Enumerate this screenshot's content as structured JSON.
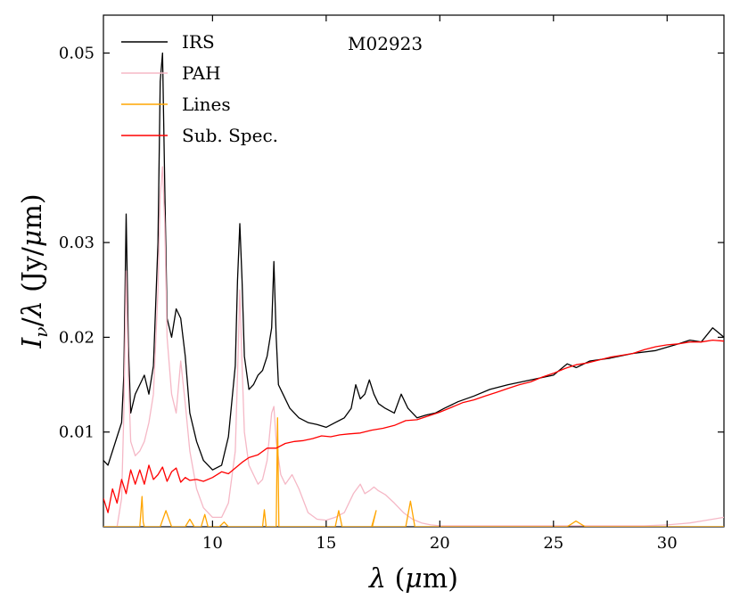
{
  "chart_data": {
    "type": "line",
    "title": "",
    "annotation": "M02923",
    "xlabel": "λ (μm)",
    "ylabel": "Iν/λ (Jy/μm)",
    "xlim": [
      5.2,
      32.5
    ],
    "ylim": [
      0.0,
      0.054
    ],
    "xticks": [
      10,
      15,
      20,
      25,
      30
    ],
    "yticks": [
      0.01,
      0.02,
      0.03,
      0.05
    ],
    "xtick_labels": [
      "10",
      "15",
      "20",
      "25",
      "30"
    ],
    "ytick_labels": [
      "0.01",
      "0.02",
      "0.03",
      "0.05"
    ],
    "legend_position": "top-left",
    "series": [
      {
        "name": "IRS",
        "color": "#000000",
        "x": [
          5.2,
          5.4,
          5.6,
          5.8,
          6.0,
          6.1,
          6.2,
          6.3,
          6.4,
          6.6,
          6.8,
          7.0,
          7.2,
          7.4,
          7.6,
          7.7,
          7.8,
          7.9,
          8.0,
          8.2,
          8.4,
          8.6,
          8.8,
          9.0,
          9.3,
          9.6,
          10.0,
          10.4,
          10.7,
          11.0,
          11.1,
          11.2,
          11.3,
          11.4,
          11.6,
          11.8,
          12.0,
          12.2,
          12.4,
          12.6,
          12.7,
          12.8,
          12.9,
          13.1,
          13.4,
          13.8,
          14.2,
          14.6,
          15.0,
          15.4,
          15.8,
          16.1,
          16.3,
          16.5,
          16.7,
          16.9,
          17.1,
          17.3,
          17.6,
          18.0,
          18.3,
          18.6,
          18.8,
          19.0,
          19.4,
          19.8,
          20.2,
          20.8,
          21.5,
          22.2,
          23.0,
          24.0,
          25.0,
          25.6,
          26.0,
          26.6,
          27.5,
          28.5,
          29.5,
          30.5,
          31.0,
          31.5,
          32.0,
          32.5
        ],
        "y": [
          0.007,
          0.0065,
          0.008,
          0.0095,
          0.011,
          0.016,
          0.033,
          0.019,
          0.012,
          0.014,
          0.015,
          0.016,
          0.014,
          0.017,
          0.03,
          0.047,
          0.05,
          0.036,
          0.022,
          0.02,
          0.023,
          0.022,
          0.018,
          0.012,
          0.009,
          0.007,
          0.006,
          0.0065,
          0.0095,
          0.017,
          0.026,
          0.032,
          0.026,
          0.018,
          0.0145,
          0.015,
          0.016,
          0.0165,
          0.018,
          0.021,
          0.028,
          0.02,
          0.015,
          0.014,
          0.0125,
          0.0115,
          0.011,
          0.0108,
          0.0105,
          0.011,
          0.0115,
          0.0125,
          0.015,
          0.0135,
          0.014,
          0.0155,
          0.014,
          0.013,
          0.0125,
          0.012,
          0.014,
          0.0125,
          0.012,
          0.0115,
          0.0118,
          0.012,
          0.0125,
          0.0132,
          0.0138,
          0.0145,
          0.015,
          0.0155,
          0.016,
          0.0172,
          0.0168,
          0.0175,
          0.0178,
          0.0183,
          0.0186,
          0.0193,
          0.0197,
          0.0195,
          0.021,
          0.02
        ]
      },
      {
        "name": "PAH",
        "color": "#f5b8c6",
        "x": [
          5.2,
          5.8,
          6.0,
          6.1,
          6.2,
          6.3,
          6.4,
          6.6,
          6.8,
          7.0,
          7.2,
          7.4,
          7.6,
          7.7,
          7.8,
          7.9,
          8.0,
          8.2,
          8.4,
          8.6,
          8.8,
          9.0,
          9.3,
          9.6,
          10.0,
          10.4,
          10.7,
          11.0,
          11.1,
          11.2,
          11.3,
          11.4,
          11.6,
          11.8,
          12.0,
          12.2,
          12.4,
          12.6,
          12.7,
          12.8,
          13.0,
          13.2,
          13.5,
          13.8,
          14.2,
          14.6,
          15.0,
          15.4,
          15.8,
          16.2,
          16.5,
          16.7,
          16.9,
          17.1,
          17.3,
          17.6,
          18.0,
          18.4,
          18.8,
          19.2,
          19.6,
          20.0,
          21.0,
          22.0,
          23.0,
          24.0,
          25.0,
          26.0,
          27.0,
          28.0,
          29.0,
          30.0,
          31.0,
          31.5,
          32.0,
          32.5
        ],
        "y": [
          0.0,
          0.0,
          0.003,
          0.012,
          0.027,
          0.016,
          0.009,
          0.0075,
          0.008,
          0.009,
          0.011,
          0.014,
          0.025,
          0.035,
          0.038,
          0.032,
          0.02,
          0.014,
          0.012,
          0.0175,
          0.013,
          0.008,
          0.004,
          0.002,
          0.001,
          0.001,
          0.0025,
          0.008,
          0.016,
          0.025,
          0.017,
          0.01,
          0.0065,
          0.0055,
          0.0045,
          0.005,
          0.007,
          0.012,
          0.0127,
          0.009,
          0.0055,
          0.0045,
          0.0055,
          0.004,
          0.0015,
          0.0008,
          0.0007,
          0.001,
          0.0015,
          0.0035,
          0.0045,
          0.0035,
          0.0038,
          0.0042,
          0.0038,
          0.0034,
          0.0025,
          0.0015,
          0.0008,
          0.0004,
          0.0002,
          0.0001,
          0.0001,
          0.0001,
          0.0001,
          0.0001,
          0.0001,
          0.0001,
          0.0001,
          0.0001,
          0.0001,
          0.0002,
          0.0004,
          0.0006,
          0.0008,
          0.001
        ]
      },
      {
        "name": "Lines",
        "color": "#ffa500",
        "x": [
          5.2,
          6.8,
          6.9,
          6.95,
          7.0,
          7.1,
          7.7,
          7.95,
          8.2,
          8.8,
          9.0,
          9.2,
          9.5,
          9.66,
          9.8,
          10.3,
          10.51,
          10.7,
          11.9,
          12.2,
          12.28,
          12.36,
          12.6,
          12.7,
          12.8,
          12.86,
          12.92,
          13.0,
          15.4,
          15.55,
          15.7,
          17.0,
          17.2,
          17.03,
          17.45,
          18.5,
          18.71,
          18.9,
          25.6,
          25.99,
          26.4,
          32.5
        ],
        "y": [
          0.0,
          0.0,
          0.0032,
          0.0005,
          0.0,
          0.0,
          0.0,
          0.0017,
          0.0,
          0.0,
          0.0008,
          0.0,
          0.0,
          0.0013,
          0.0,
          0.0,
          0.0005,
          0.0,
          0.0,
          0.0,
          0.0018,
          0.0,
          0.0,
          0.0,
          0.0,
          0.0115,
          0.0,
          0.0,
          0.0,
          0.0017,
          0.0,
          0.0,
          0.0017,
          0.0,
          0.0,
          0.0,
          0.0027,
          0.0,
          0.0,
          0.0006,
          0.0,
          0.0
        ]
      },
      {
        "name": "Sub. Spec.",
        "color": "#ff0000",
        "x": [
          5.2,
          5.4,
          5.6,
          5.8,
          6.0,
          6.2,
          6.4,
          6.6,
          6.8,
          7.0,
          7.2,
          7.4,
          7.6,
          7.8,
          8.0,
          8.2,
          8.4,
          8.6,
          8.8,
          9.0,
          9.3,
          9.6,
          10.0,
          10.4,
          10.7,
          11.0,
          11.3,
          11.6,
          12.0,
          12.4,
          12.8,
          13.2,
          13.6,
          14.0,
          14.4,
          14.8,
          15.2,
          15.6,
          16.0,
          16.5,
          17.0,
          17.5,
          18.0,
          18.5,
          19.0,
          19.5,
          20.0,
          20.5,
          21.0,
          21.5,
          22.0,
          22.5,
          23.0,
          23.5,
          24.0,
          24.5,
          25.0,
          25.5,
          26.0,
          26.5,
          27.0,
          27.5,
          28.0,
          28.5,
          29.0,
          29.5,
          30.0,
          30.5,
          31.0,
          31.5,
          32.0,
          32.5
        ],
        "y": [
          0.003,
          0.0015,
          0.004,
          0.0025,
          0.005,
          0.0035,
          0.006,
          0.0045,
          0.006,
          0.0045,
          0.0065,
          0.005,
          0.0055,
          0.0063,
          0.0048,
          0.0058,
          0.0062,
          0.0047,
          0.0052,
          0.0049,
          0.005,
          0.0048,
          0.0052,
          0.0058,
          0.0056,
          0.0062,
          0.0068,
          0.0073,
          0.0076,
          0.0083,
          0.0083,
          0.0088,
          0.009,
          0.0091,
          0.0093,
          0.0096,
          0.0095,
          0.0097,
          0.0098,
          0.0099,
          0.0102,
          0.0104,
          0.0107,
          0.0112,
          0.0113,
          0.0117,
          0.0121,
          0.0126,
          0.0131,
          0.0134,
          0.0138,
          0.0142,
          0.0146,
          0.015,
          0.0153,
          0.0158,
          0.0162,
          0.0167,
          0.0171,
          0.0173,
          0.0176,
          0.0179,
          0.0181,
          0.0183,
          0.0187,
          0.019,
          0.0192,
          0.0193,
          0.0195,
          0.0195,
          0.0197,
          0.0196
        ]
      }
    ]
  }
}
